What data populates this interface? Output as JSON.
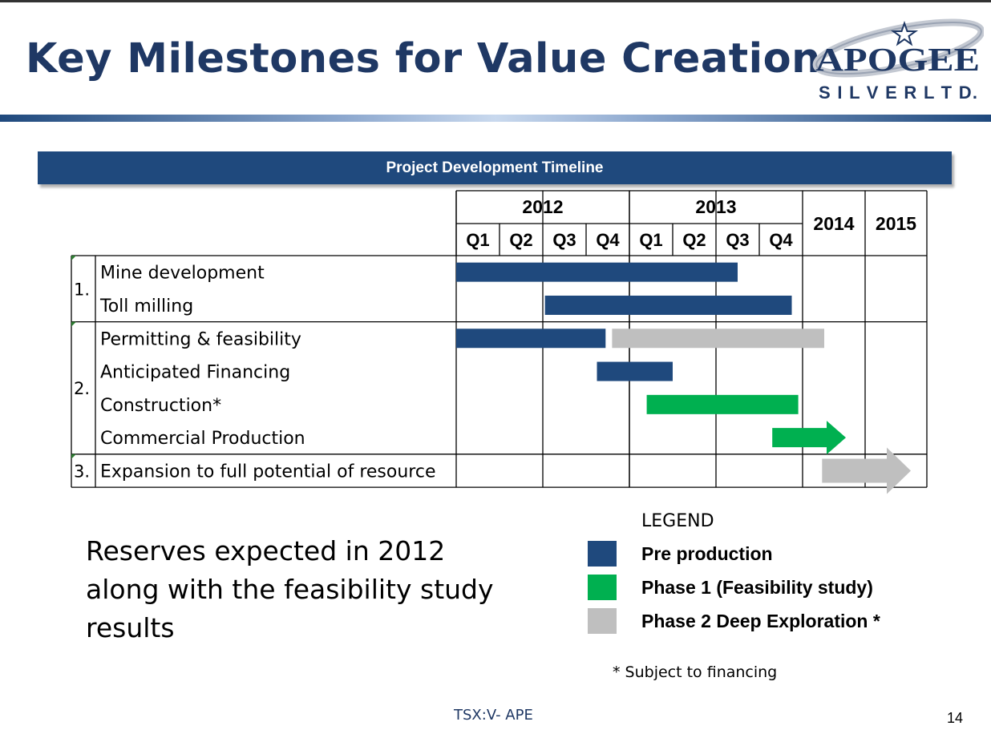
{
  "slide": {
    "title": "Key Milestones for Value Creation",
    "banner": "Project Development Timeline",
    "note": "Reserves expected in 2012 along with the feasibility study results",
    "footnote": "* Subject to financing",
    "ticker": "TSX:V- APE",
    "page_number": "14"
  },
  "logo": {
    "name": "APOGEE",
    "subtitle": "S I L V E R   L T D.",
    "icon": "star-icon"
  },
  "timeline": {
    "years": [
      {
        "label": "2012",
        "quarters": [
          "Q1",
          "Q2",
          "Q3",
          "Q4"
        ]
      },
      {
        "label": "2013",
        "quarters": [
          "Q1",
          "Q2",
          "Q3",
          "Q4"
        ]
      },
      {
        "label": "2014",
        "quarters": []
      },
      {
        "label": "2015",
        "quarters": []
      }
    ],
    "groups": [
      {
        "number": "1.",
        "tasks": [
          "Mine development",
          "Toll milling"
        ]
      },
      {
        "number": "2.",
        "tasks": [
          "Permitting & feasibility",
          "Anticipated Financing",
          "Construction*",
          "Commercial Production"
        ]
      },
      {
        "number": "3.",
        "tasks": [
          "Expansion to full potential of resource"
        ]
      }
    ],
    "bars": [
      {
        "task": "Mine development",
        "phase": "pre",
        "start": 0.0,
        "end": 6.5
      },
      {
        "task": "Toll milling",
        "phase": "pre",
        "start": 2.05,
        "end": 7.75
      },
      {
        "task": "Permitting & feasibility",
        "phase": "pre",
        "start": 0.0,
        "end": 3.45
      },
      {
        "task": "Permitting & feasibility",
        "phase": "p2",
        "start": 3.6,
        "end": 8.5
      },
      {
        "task": "Anticipated Financing",
        "phase": "pre",
        "start": 3.25,
        "end": 5.0
      },
      {
        "task": "Construction*",
        "phase": "p1",
        "start": 4.4,
        "end": 7.9
      },
      {
        "task": "Commercial Production",
        "phase": "p1",
        "start": 7.3,
        "end": 9.0,
        "arrow": true
      },
      {
        "task": "Expansion to full potential of resource",
        "phase": "p2",
        "start": 8.45,
        "end": 10.5,
        "arrow": true
      }
    ]
  },
  "legend": {
    "title": "LEGEND",
    "items": [
      {
        "key": "pre",
        "label": "Pre production",
        "color": "#1f497d"
      },
      {
        "key": "p1",
        "label": "Phase 1 (Feasibility study)",
        "color": "#00b050"
      },
      {
        "key": "p2",
        "label": "Phase 2 Deep Exploration *",
        "color": "#bfbfbf"
      }
    ]
  },
  "colors": {
    "title": "#1f3864",
    "banner": "#1f497d",
    "pre": "#1f497d",
    "p1": "#00b050",
    "p2": "#bfbfbf"
  }
}
